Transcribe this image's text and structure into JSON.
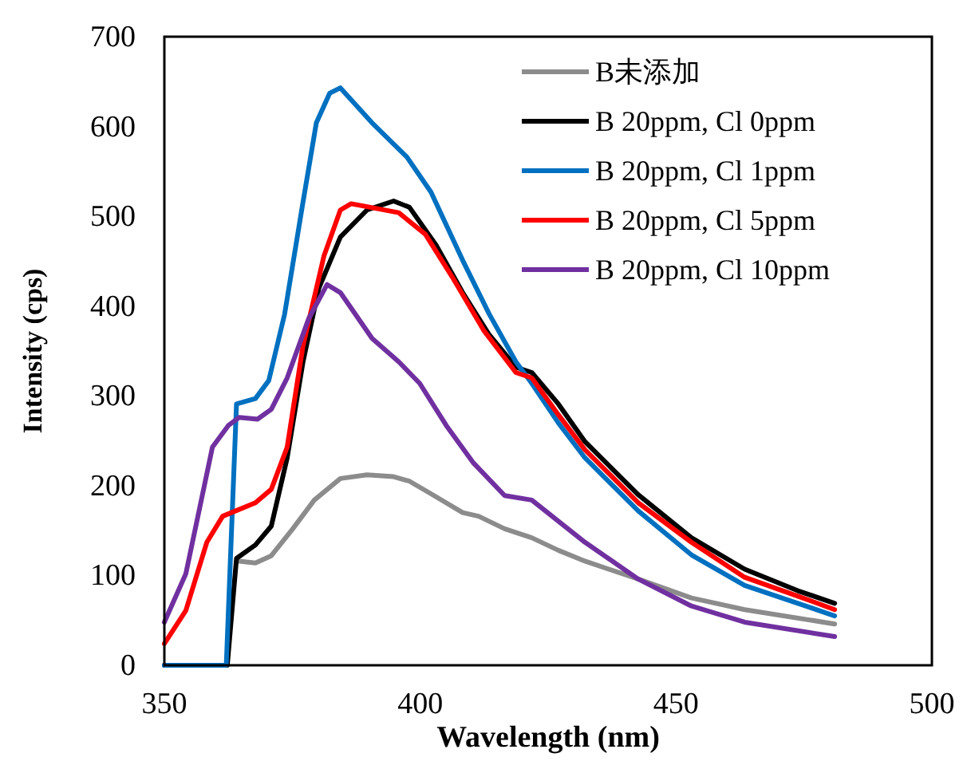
{
  "chart_data": {
    "type": "line",
    "xlabel": "Wavelength (nm)",
    "ylabel": "Intensity (cps)",
    "xlim": [
      350,
      500
    ],
    "ylim": [
      0,
      700
    ],
    "xticks": [
      350,
      400,
      450,
      500
    ],
    "yticks": [
      0,
      100,
      200,
      300,
      400,
      500,
      600,
      700
    ],
    "legend": "top right",
    "series": [
      {
        "name": "B未添加",
        "color": "#8c8c8c",
        "x": [
          364.6,
          367.8,
          370.9,
          375.1,
          379.3,
          384.4,
          389.6,
          394.8,
          397.9,
          402.1,
          408.3,
          411.4,
          416.5,
          421.8,
          427,
          432.2,
          442.6,
          453,
          463.4,
          481
        ],
        "values": [
          116,
          114,
          122,
          152,
          184,
          208,
          212,
          210,
          205,
          191,
          170,
          166,
          152,
          142,
          128,
          116,
          96,
          75,
          62,
          46
        ]
      },
      {
        "name": "B 20ppm, Cl 0ppm",
        "color": "#000000",
        "x": [
          350,
          362.3,
          364.1,
          367.8,
          370.9,
          374,
          377.1,
          380.2,
          384.4,
          389.6,
          394.8,
          397.9,
          403.1,
          408.3,
          413.5,
          418.7,
          421.8,
          427,
          432.2,
          442.6,
          453,
          463.4,
          473.8,
          481
        ],
        "values": [
          0,
          0,
          119,
          134,
          155,
          231,
          338,
          420,
          477,
          507,
          517,
          510,
          468,
          415,
          368,
          332,
          326,
          291,
          249,
          190,
          142,
          107,
          83,
          69
        ]
      },
      {
        "name": "B 20ppm, Cl 1ppm",
        "color": "#0070c0",
        "x": [
          350,
          362.1,
          364.1,
          367.8,
          370.4,
          373.5,
          377.1,
          379.7,
          382.3,
          384.4,
          390.6,
          397.4,
          402.1,
          408.3,
          413.5,
          418.7,
          421.8,
          427,
          432.2,
          442.6,
          453,
          463.4,
          473.8,
          481
        ],
        "values": [
          0,
          0,
          291,
          297,
          317,
          391,
          516,
          604,
          637,
          643,
          604,
          566,
          527,
          451,
          391,
          338,
          314,
          270,
          231,
          172,
          123,
          89,
          69,
          55
        ]
      },
      {
        "name": "B 20ppm, Cl 5ppm",
        "color": "#ff0000",
        "x": [
          350,
          354.2,
          358.3,
          361.4,
          367.8,
          370.9,
          374,
          377.1,
          381.2,
          384.4,
          386.5,
          395.8,
          401,
          406.2,
          412.4,
          418.7,
          421.8,
          427,
          432.2,
          442.6,
          453,
          463.4,
          473.8,
          481
        ],
        "values": [
          24,
          61,
          137,
          166,
          181,
          196,
          243,
          356,
          456,
          507,
          514,
          504,
          480,
          433,
          373,
          326,
          320,
          279,
          240,
          181,
          137,
          98,
          77,
          62
        ]
      },
      {
        "name": "B 20ppm, Cl 10ppm",
        "color": "#7030a0",
        "x": [
          350,
          354.2,
          359.4,
          362.5,
          364.6,
          368.2,
          370.9,
          374,
          378.2,
          381.8,
          384.4,
          390.6,
          395.8,
          399.9,
          405.1,
          410.3,
          416.5,
          421.8,
          432.2,
          442.6,
          453,
          463.4,
          481
        ],
        "values": [
          48,
          102,
          243,
          267,
          276,
          274,
          285,
          320,
          386,
          424,
          415,
          364,
          338,
          314,
          267,
          226,
          189,
          184,
          137,
          96,
          66,
          48,
          32
        ]
      }
    ]
  }
}
